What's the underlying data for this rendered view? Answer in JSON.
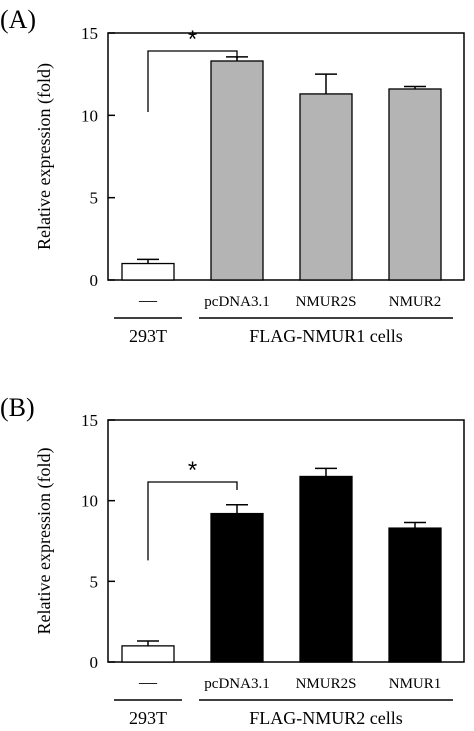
{
  "chart_data": [
    {
      "type": "bar",
      "panel_label": "(A)",
      "ylabel": "Relative expression (fold)",
      "ylim": [
        0,
        15
      ],
      "yticks": [
        0,
        5,
        10,
        15
      ],
      "categories": [
        "—",
        "pcDNA3.1",
        "NMUR2S",
        "NMUR2"
      ],
      "values": [
        1.0,
        13.3,
        11.3,
        11.6
      ],
      "errors": [
        0.25,
        0.25,
        1.2,
        0.15
      ],
      "colors": [
        "#ffffff",
        "#b4b4b4",
        "#b4b4b4",
        "#b4b4b4"
      ],
      "groups": [
        {
          "label": "293T",
          "categories": [
            0
          ]
        },
        {
          "label": "FLAG-NMUR1 cells",
          "categories": [
            1,
            2,
            3
          ]
        }
      ],
      "significance": {
        "from": 0,
        "to": 1,
        "label": "*"
      }
    },
    {
      "type": "bar",
      "panel_label": "(B)",
      "ylabel": "Relative expression (fold)",
      "ylim": [
        0,
        15
      ],
      "yticks": [
        0,
        5,
        10,
        15
      ],
      "categories": [
        "—",
        "pcDNA3.1",
        "NMUR2S",
        "NMUR1"
      ],
      "values": [
        1.0,
        9.2,
        11.5,
        8.3
      ],
      "errors": [
        0.3,
        0.55,
        0.5,
        0.35
      ],
      "colors": [
        "#ffffff",
        "#000000",
        "#000000",
        "#000000"
      ],
      "groups": [
        {
          "label": "293T",
          "categories": [
            0
          ]
        },
        {
          "label": "FLAG-NMUR2 cells",
          "categories": [
            1,
            2,
            3
          ]
        }
      ],
      "significance": {
        "from": 0,
        "to": 1,
        "label": "*"
      }
    }
  ]
}
